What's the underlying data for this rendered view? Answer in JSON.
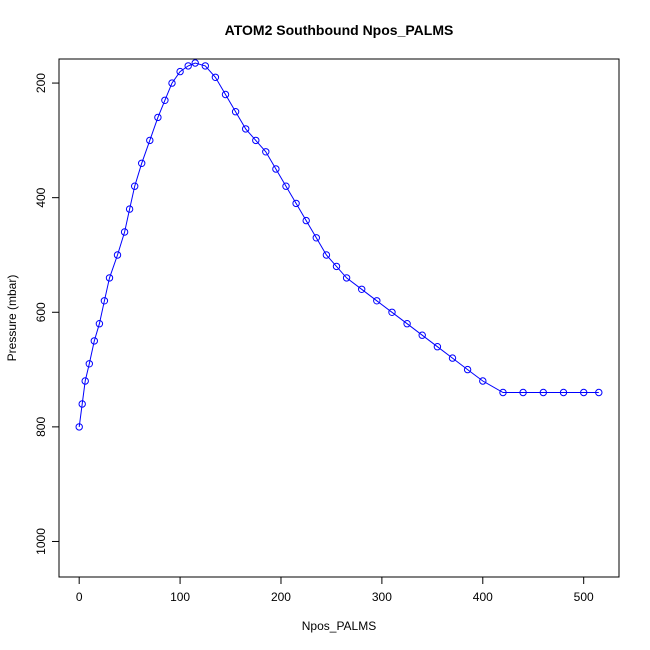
{
  "chart_data": {
    "type": "scatter",
    "title": "ATOM2 Southbound Npos_PALMS",
    "xlabel": "Npos_PALMS",
    "ylabel": "Pressure (mbar)",
    "xlim": [
      -20,
      535
    ],
    "ylim": [
      1062,
      158
    ],
    "y_reversed": true,
    "x_ticks": [
      0,
      100,
      200,
      300,
      400,
      500
    ],
    "y_ticks": [
      200,
      400,
      600,
      800,
      1000
    ],
    "marker": "open-circle",
    "connect_points": true,
    "colors": {
      "series": "#0000ff",
      "axis": "#000000",
      "background": "#ffffff"
    },
    "series": [
      {
        "x": [
          0,
          3,
          6,
          10,
          15,
          20,
          25,
          30,
          38,
          45,
          50,
          55,
          62,
          70,
          78,
          85,
          92,
          100,
          108,
          115,
          125,
          135,
          145,
          155,
          165,
          175,
          185,
          195,
          205,
          215,
          225,
          235,
          245,
          255,
          265,
          280,
          295,
          310,
          325,
          340,
          355,
          370,
          385,
          400,
          420,
          440,
          460,
          480,
          500,
          515
        ],
        "y": [
          800,
          760,
          720,
          690,
          650,
          620,
          580,
          540,
          500,
          460,
          420,
          380,
          340,
          300,
          260,
          230,
          200,
          180,
          170,
          165,
          170,
          190,
          220,
          250,
          280,
          300,
          320,
          350,
          380,
          410,
          440,
          470,
          500,
          520,
          540,
          560,
          580,
          600,
          620,
          640,
          660,
          680,
          700,
          720,
          740,
          740,
          740,
          740,
          740,
          740
        ]
      }
    ]
  }
}
